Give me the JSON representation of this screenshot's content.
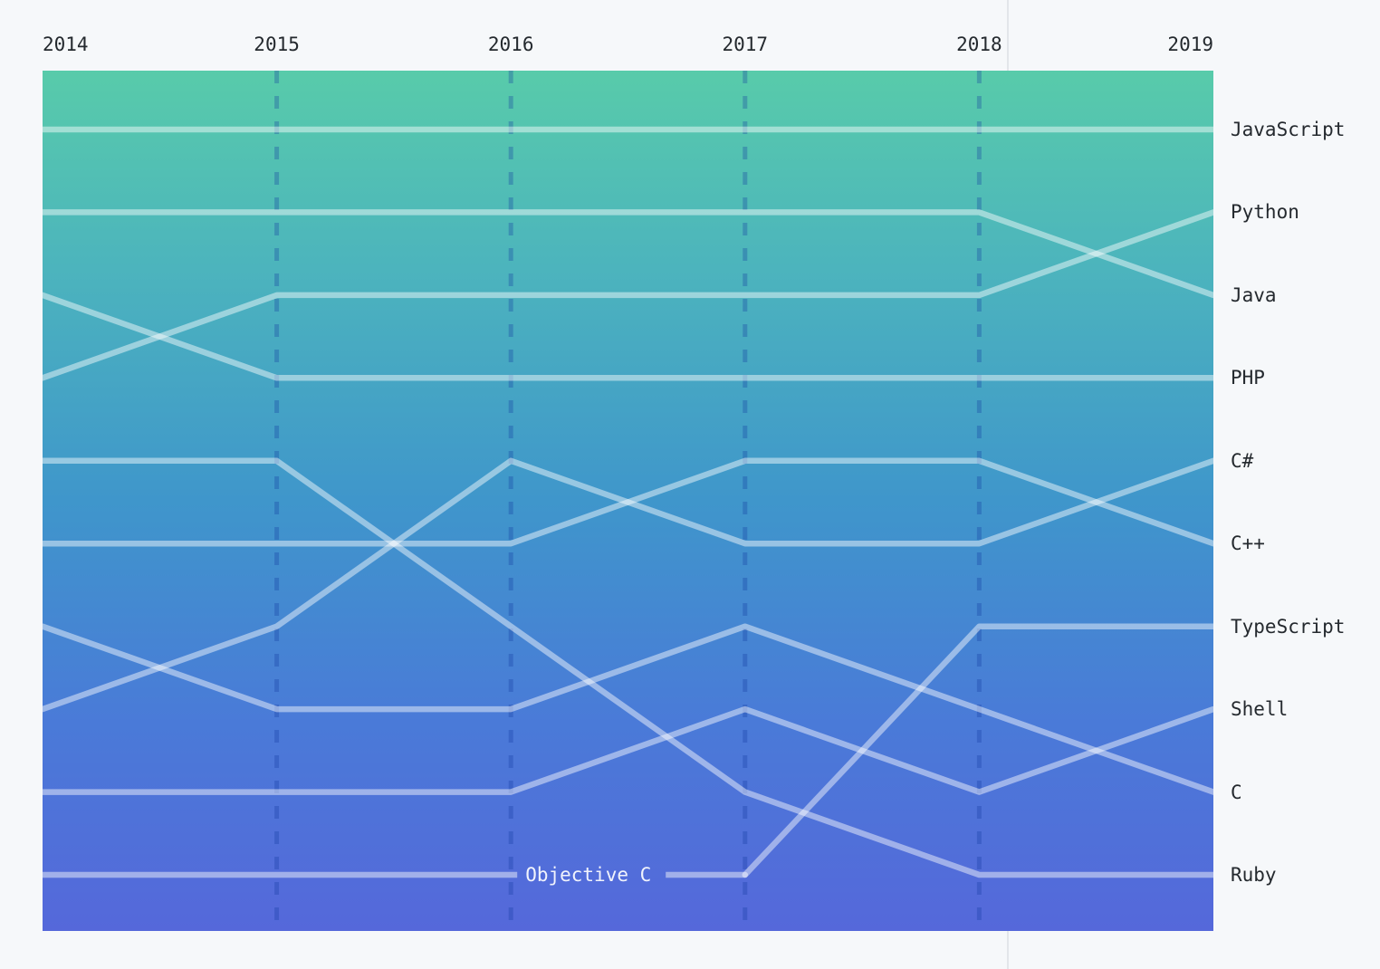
{
  "chart_data": {
    "type": "bump",
    "x_axis": {
      "years": [
        "2014",
        "2015",
        "2016",
        "2017",
        "2018",
        "2019"
      ]
    },
    "rank_axis": {
      "min": 1,
      "max": 10,
      "direction": "rank-1-at-top"
    },
    "series": [
      {
        "name": "JavaScript",
        "ranks": [
          1,
          1,
          1,
          1,
          1,
          1
        ]
      },
      {
        "name": "Python",
        "ranks": [
          4,
          3,
          3,
          3,
          3,
          2
        ]
      },
      {
        "name": "Java",
        "ranks": [
          2,
          2,
          2,
          2,
          2,
          3
        ]
      },
      {
        "name": "PHP",
        "ranks": [
          3,
          4,
          4,
          4,
          4,
          4
        ]
      },
      {
        "name": "C#",
        "ranks": [
          8,
          7,
          5,
          6,
          6,
          5
        ]
      },
      {
        "name": "C++",
        "ranks": [
          6,
          6,
          6,
          5,
          5,
          6
        ]
      },
      {
        "name": "TypeScript",
        "ranks": [
          null,
          null,
          null,
          10,
          7,
          7
        ]
      },
      {
        "name": "Shell",
        "ranks": [
          9,
          9,
          9,
          8,
          9,
          8
        ]
      },
      {
        "name": "C",
        "ranks": [
          7,
          8,
          8,
          7,
          8,
          9
        ]
      },
      {
        "name": "Ruby",
        "ranks": [
          5,
          5,
          7,
          9,
          10,
          10
        ]
      },
      {
        "name": "Objective C",
        "ranks": [
          10,
          10,
          10,
          10,
          null,
          null
        ],
        "label_inline": true
      }
    ],
    "legend_position": "right-edge-labels",
    "grid": "dashed-vertical-year-lines"
  },
  "colors": {
    "page_background": "#f6f8fa",
    "divider": "#e3e6ea",
    "gradient_stops": [
      "#58cbaa",
      "#4cb4bd",
      "#3f96cb",
      "#4a7ad8",
      "#5568da"
    ],
    "series_line": "rgba(255,255,255,0.46)",
    "grid_dash": "rgba(16,57,159,0.30)",
    "axis_text": "#24292e",
    "inline_label_text": "rgba(255,255,255,0.92)"
  }
}
